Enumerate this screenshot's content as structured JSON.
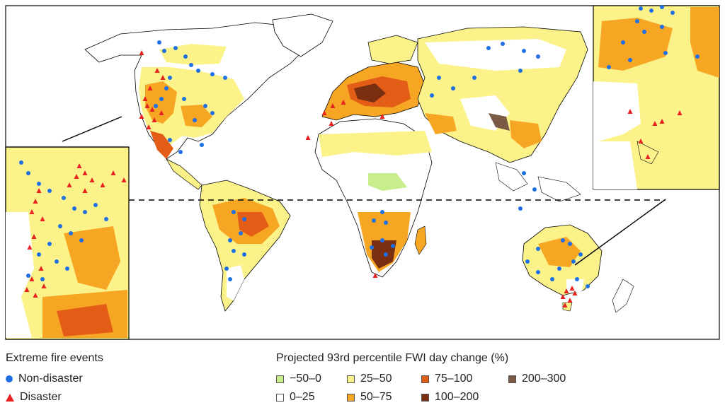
{
  "colors": {
    "ocean": "#ffffff",
    "border": "#000000",
    "non_disaster": "#1f6fe5",
    "disaster": "#e8231f"
  },
  "events_legend": {
    "title": "Extreme fire events",
    "items": [
      {
        "label": "Non-disaster",
        "symbol": "circle-icon",
        "color": "#1f6fe5"
      },
      {
        "label": "Disaster",
        "symbol": "triangle-icon",
        "color": "#e8231f"
      }
    ]
  },
  "fwi_legend": {
    "title": "Projected 93rd percentile FWI day change (%)",
    "items": [
      {
        "label": "−50–0",
        "color": "#c8ee8c"
      },
      {
        "label": "25–50",
        "color": "#fbf38a"
      },
      {
        "label": "75–100",
        "color": "#e35d16"
      },
      {
        "label": "200–300",
        "color": "#7a5a45"
      },
      {
        "label": "0–25",
        "color": "#ffffff"
      },
      {
        "label": "50–75",
        "color": "#f6a623"
      },
      {
        "label": "100–200",
        "color": "#7a2f10"
      }
    ]
  }
}
